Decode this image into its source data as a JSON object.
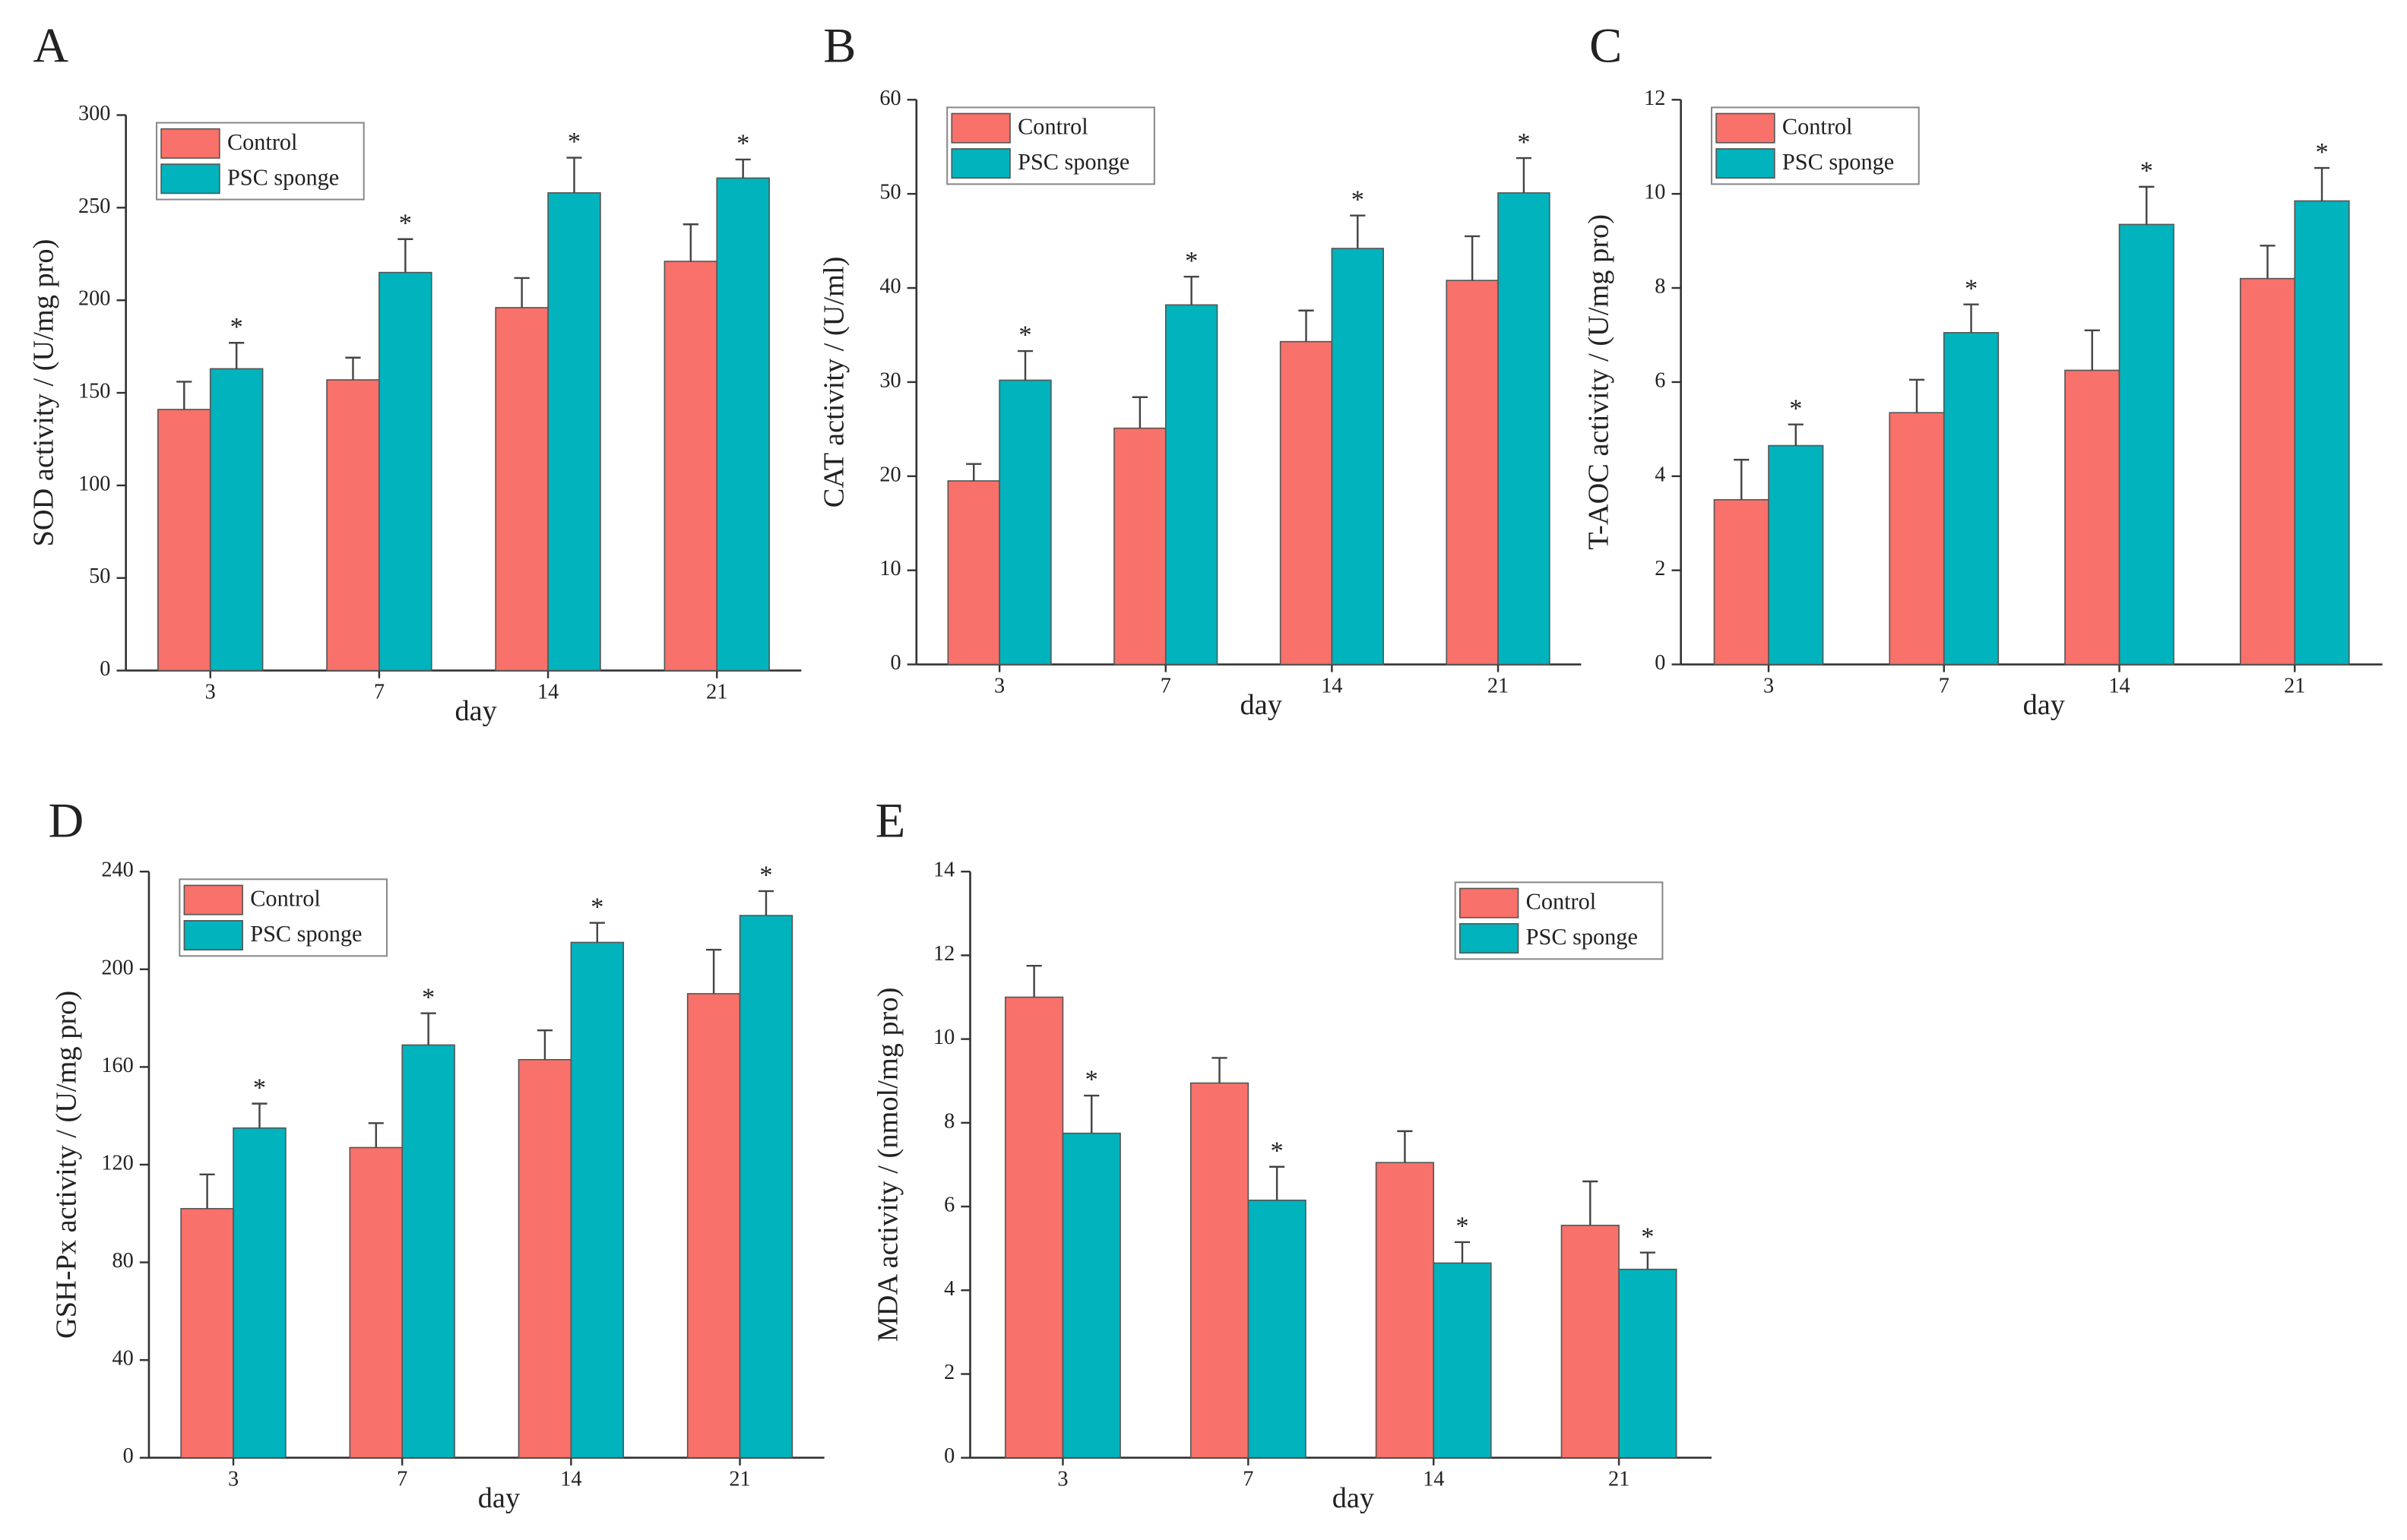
{
  "chart_data": [
    {
      "type": "bar",
      "panel": "A",
      "ylabel": "SOD activity / (U/mg pro)",
      "xlabel": "day",
      "categories": [
        "3",
        "7",
        "14",
        "21"
      ],
      "series": [
        {
          "name": "Control",
          "color": "#f8716a",
          "values": [
            141,
            157,
            196,
            221
          ],
          "errors": [
            15,
            12,
            16,
            20
          ]
        },
        {
          "name": "PSC sponge",
          "color": "#00b3bc",
          "values": [
            163,
            215,
            258,
            266
          ],
          "errors": [
            14,
            18,
            19,
            10
          ],
          "significance": [
            "*",
            "*",
            "*",
            "*"
          ]
        }
      ],
      "ylim": [
        0,
        300
      ],
      "yticks": [
        0,
        50,
        100,
        150,
        200,
        250,
        300
      ],
      "legend": "upper left"
    },
    {
      "type": "bar",
      "panel": "B",
      "ylabel": "CAT activity / (U/ml)",
      "xlabel": "day",
      "categories": [
        "3",
        "7",
        "14",
        "21"
      ],
      "series": [
        {
          "name": "Control",
          "color": "#f8716a",
          "values": [
            19.5,
            25.1,
            34.3,
            40.8
          ],
          "errors": [
            1.8,
            3.3,
            3.3,
            4.7
          ]
        },
        {
          "name": "PSC sponge",
          "color": "#00b3bc",
          "values": [
            30.2,
            38.2,
            44.2,
            50.1
          ],
          "errors": [
            3.1,
            3.0,
            3.5,
            3.7
          ],
          "significance": [
            "*",
            "*",
            "*",
            "*"
          ]
        }
      ],
      "ylim": [
        0,
        60
      ],
      "yticks": [
        0,
        10,
        20,
        30,
        40,
        50,
        60
      ],
      "legend": "upper left"
    },
    {
      "type": "bar",
      "panel": "C",
      "ylabel": "T-AOC activity / (U/mg pro)",
      "xlabel": "day",
      "categories": [
        "3",
        "7",
        "14",
        "21"
      ],
      "series": [
        {
          "name": "Control",
          "color": "#f8716a",
          "values": [
            3.5,
            5.35,
            6.25,
            8.2
          ],
          "errors": [
            0.85,
            0.7,
            0.85,
            0.7
          ]
        },
        {
          "name": "PSC sponge",
          "color": "#00b3bc",
          "values": [
            4.65,
            7.05,
            9.35,
            9.85
          ],
          "errors": [
            0.45,
            0.6,
            0.8,
            0.7
          ],
          "significance": [
            "*",
            "*",
            "*",
            "*"
          ]
        }
      ],
      "ylim": [
        0,
        12
      ],
      "yticks": [
        0,
        2,
        4,
        6,
        8,
        10,
        12
      ],
      "legend": "upper left"
    },
    {
      "type": "bar",
      "panel": "D",
      "ylabel": "GSH-Px activity / (U/mg pro)",
      "xlabel": "day",
      "categories": [
        "3",
        "7",
        "14",
        "21"
      ],
      "series": [
        {
          "name": "Control",
          "color": "#f8716a",
          "values": [
            102,
            127,
            163,
            190
          ],
          "errors": [
            14,
            10,
            12,
            18
          ]
        },
        {
          "name": "PSC sponge",
          "color": "#00b3bc",
          "values": [
            135,
            169,
            211,
            222
          ],
          "errors": [
            10,
            13,
            8,
            10
          ],
          "significance": [
            "*",
            "*",
            "*",
            "*"
          ]
        }
      ],
      "ylim": [
        0,
        240
      ],
      "yticks": [
        0,
        40,
        80,
        120,
        160,
        200,
        240
      ],
      "legend": "upper left"
    },
    {
      "type": "bar",
      "panel": "E",
      "ylabel": "MDA activity / (nmol/mg pro)",
      "xlabel": "day",
      "categories": [
        "3",
        "7",
        "14",
        "21"
      ],
      "series": [
        {
          "name": "Control",
          "color": "#f8716a",
          "values": [
            11.0,
            8.95,
            7.05,
            5.55
          ],
          "errors": [
            0.75,
            0.6,
            0.75,
            1.05
          ]
        },
        {
          "name": "PSC sponge",
          "color": "#00b3bc",
          "values": [
            7.75,
            6.15,
            4.65,
            4.5
          ],
          "errors": [
            0.9,
            0.8,
            0.5,
            0.4
          ],
          "significance": [
            "*",
            "*",
            "*",
            "*"
          ]
        }
      ],
      "ylim": [
        0,
        14
      ],
      "yticks": [
        0,
        2,
        4,
        6,
        8,
        10,
        12,
        14
      ],
      "legend": "upper right"
    }
  ]
}
